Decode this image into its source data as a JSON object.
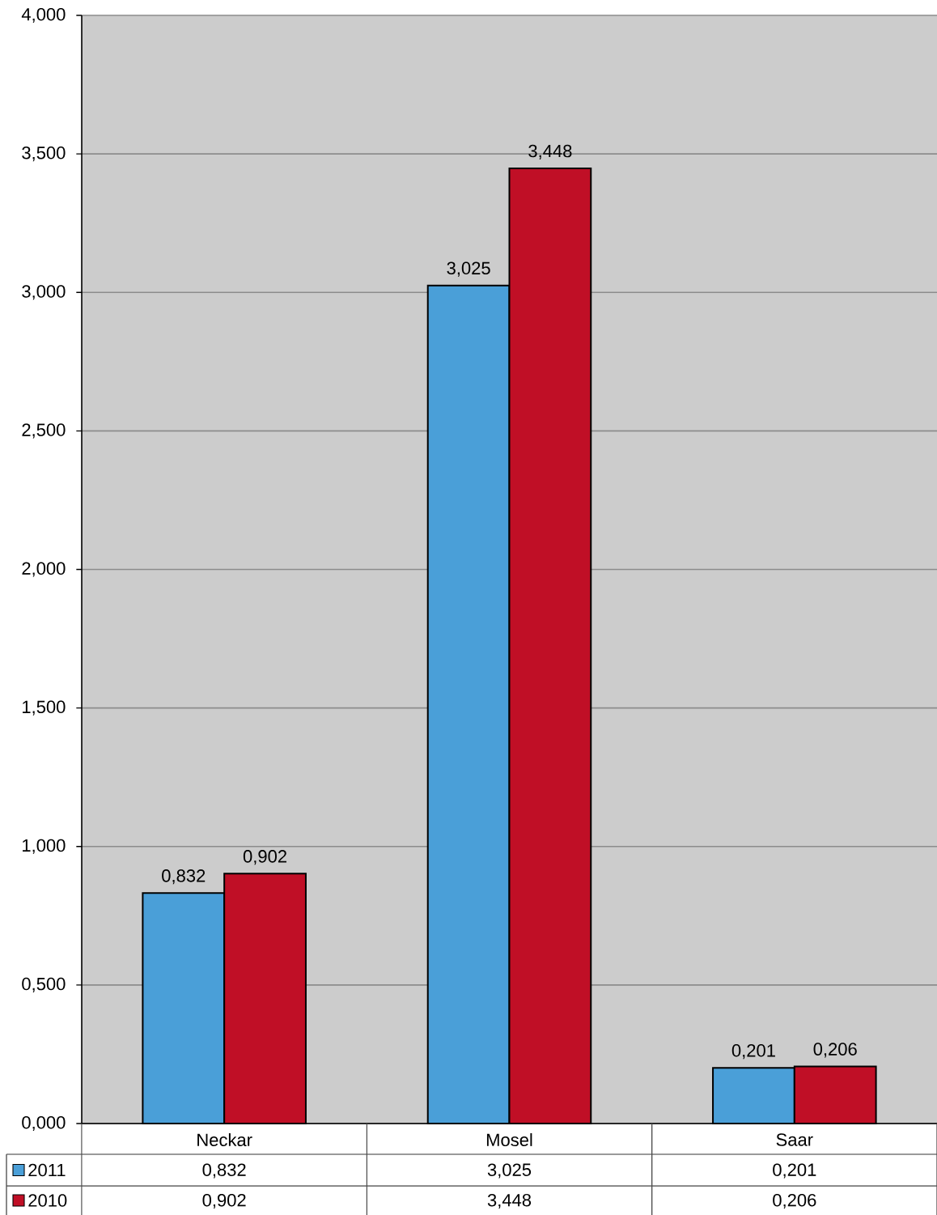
{
  "chart_data": {
    "type": "bar",
    "categories": [
      "Neckar",
      "Mosel",
      "Saar"
    ],
    "series": [
      {
        "name": "2011",
        "color": "#4a9fd8",
        "values": [
          0.832,
          3.025,
          0.201
        ],
        "value_labels": [
          "0,832",
          "3,025",
          "0,201"
        ]
      },
      {
        "name": "2010",
        "color": "#c00f26",
        "values": [
          0.902,
          3.448,
          0.206
        ],
        "value_labels": [
          "0,902",
          "3,448",
          "0,206"
        ]
      }
    ],
    "ylim": [
      0,
      4
    ],
    "yticks": [
      {
        "value": 0,
        "label": "0,000"
      },
      {
        "value": 0.5,
        "label": "0,500"
      },
      {
        "value": 1,
        "label": "1,000"
      },
      {
        "value": 1.5,
        "label": "1,500"
      },
      {
        "value": 2,
        "label": "2,000"
      },
      {
        "value": 2.5,
        "label": "2,500"
      },
      {
        "value": 3,
        "label": "3,000"
      },
      {
        "value": 3.5,
        "label": "3,500"
      },
      {
        "value": 4,
        "label": "4,000"
      }
    ],
    "grid": "y",
    "legend": "bottom left"
  }
}
